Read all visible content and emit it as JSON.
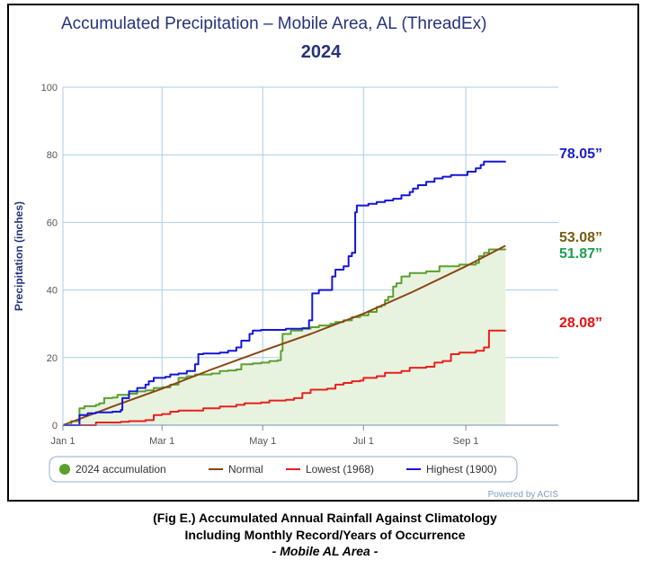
{
  "chart_data": {
    "type": "line",
    "title": "Accumulated Precipitation – Mobile Area, AL (ThreadEx)",
    "subtitle": "2024",
    "ylabel": "Precipitation (inches)",
    "xlabel": "",
    "ylim": [
      0,
      100
    ],
    "xlim": [
      0,
      300
    ],
    "y_ticks": [
      0,
      20,
      40,
      60,
      80,
      100
    ],
    "y_tick_labels": [
      "0",
      "20",
      "40",
      "60",
      "80",
      "100"
    ],
    "x_ticks": [
      0,
      60,
      121,
      182,
      244
    ],
    "x_tick_labels": [
      "Jan 1",
      "Mar 1",
      "May 1",
      "Jul 1",
      "Sep 1"
    ],
    "grid": true,
    "legend_position": "bottom",
    "credit": "Powered by ACIS",
    "series": [
      {
        "name": "2024 accumulation",
        "color": "#5aa02c",
        "fill": true,
        "points": [
          [
            0,
            0
          ],
          [
            5,
            1.2
          ],
          [
            9,
            1.5
          ],
          [
            10,
            5
          ],
          [
            13,
            5.6
          ],
          [
            20,
            6
          ],
          [
            22,
            6.5
          ],
          [
            25,
            8
          ],
          [
            30,
            8.2
          ],
          [
            33,
            9
          ],
          [
            40,
            9.3
          ],
          [
            45,
            10
          ],
          [
            50,
            10.3
          ],
          [
            55,
            11
          ],
          [
            60,
            11.2
          ],
          [
            65,
            12
          ],
          [
            70,
            14
          ],
          [
            75,
            14.5
          ],
          [
            80,
            15
          ],
          [
            90,
            15.3
          ],
          [
            95,
            16
          ],
          [
            100,
            16.2
          ],
          [
            105,
            16.5
          ],
          [
            108,
            18
          ],
          [
            115,
            18.3
          ],
          [
            120,
            18.5
          ],
          [
            125,
            19
          ],
          [
            130,
            19.2
          ],
          [
            132,
            22
          ],
          [
            133,
            27
          ],
          [
            138,
            28
          ],
          [
            145,
            28.5
          ],
          [
            150,
            29
          ],
          [
            155,
            29.5
          ],
          [
            162,
            30
          ],
          [
            165,
            30.5
          ],
          [
            170,
            31
          ],
          [
            175,
            32
          ],
          [
            180,
            32.5
          ],
          [
            185,
            33.5
          ],
          [
            190,
            35
          ],
          [
            193,
            35.5
          ],
          [
            195,
            37
          ],
          [
            197,
            38
          ],
          [
            200,
            41
          ],
          [
            202,
            42
          ],
          [
            205,
            44
          ],
          [
            210,
            45
          ],
          [
            215,
            45
          ],
          [
            220,
            45.5
          ],
          [
            225,
            45.5
          ],
          [
            228,
            47
          ],
          [
            235,
            47
          ],
          [
            240,
            47.5
          ],
          [
            245,
            47.5
          ],
          [
            250,
            48
          ],
          [
            252,
            50
          ],
          [
            255,
            51
          ],
          [
            258,
            52
          ],
          [
            262,
            52
          ],
          [
            268,
            51.87
          ]
        ]
      },
      {
        "name": "Normal",
        "color": "#8b4513",
        "fill": false,
        "points": [
          [
            0,
            0
          ],
          [
            30,
            5.5
          ],
          [
            60,
            10.8
          ],
          [
            90,
            16.5
          ],
          [
            121,
            22
          ],
          [
            150,
            27
          ],
          [
            182,
            33
          ],
          [
            212,
            39.5
          ],
          [
            244,
            47
          ],
          [
            268,
            53.08
          ]
        ]
      },
      {
        "name": "Lowest (1968)",
        "color": "#e8201c",
        "fill": false,
        "points": [
          [
            0,
            0
          ],
          [
            20,
            0.8
          ],
          [
            35,
            1
          ],
          [
            40,
            1.2
          ],
          [
            50,
            1.5
          ],
          [
            55,
            3
          ],
          [
            60,
            3.3
          ],
          [
            65,
            4
          ],
          [
            70,
            4.3
          ],
          [
            85,
            5
          ],
          [
            95,
            5.5
          ],
          [
            105,
            6
          ],
          [
            110,
            6.5
          ],
          [
            120,
            6.7
          ],
          [
            125,
            7.3
          ],
          [
            135,
            7.5
          ],
          [
            140,
            8
          ],
          [
            145,
            9.5
          ],
          [
            150,
            10.5
          ],
          [
            160,
            10.8
          ],
          [
            165,
            12
          ],
          [
            170,
            12.5
          ],
          [
            175,
            13
          ],
          [
            180,
            13.2
          ],
          [
            182,
            14
          ],
          [
            190,
            14.5
          ],
          [
            195,
            15.5
          ],
          [
            205,
            16
          ],
          [
            210,
            17
          ],
          [
            220,
            17.3
          ],
          [
            225,
            18.5
          ],
          [
            230,
            19
          ],
          [
            235,
            21
          ],
          [
            240,
            21.5
          ],
          [
            250,
            22
          ],
          [
            255,
            23
          ],
          [
            258,
            28
          ],
          [
            262,
            28
          ],
          [
            268,
            28.08
          ]
        ]
      },
      {
        "name": "Highest (1900)",
        "color": "#1515d8",
        "fill": false,
        "points": [
          [
            0,
            0
          ],
          [
            10,
            3
          ],
          [
            15,
            3.5
          ],
          [
            20,
            3.8
          ],
          [
            30,
            4
          ],
          [
            35,
            4.5
          ],
          [
            36,
            8
          ],
          [
            40,
            10
          ],
          [
            45,
            11
          ],
          [
            50,
            12
          ],
          [
            52,
            13
          ],
          [
            55,
            14
          ],
          [
            62,
            14.3
          ],
          [
            65,
            15
          ],
          [
            70,
            15.3
          ],
          [
            75,
            16
          ],
          [
            80,
            18
          ],
          [
            82,
            21
          ],
          [
            85,
            21.2
          ],
          [
            95,
            21.5
          ],
          [
            100,
            22
          ],
          [
            105,
            23
          ],
          [
            108,
            25
          ],
          [
            113,
            27
          ],
          [
            115,
            28
          ],
          [
            120,
            28.2
          ],
          [
            135,
            28.5
          ],
          [
            145,
            28.7
          ],
          [
            149,
            31
          ],
          [
            151,
            39
          ],
          [
            155,
            40
          ],
          [
            160,
            40
          ],
          [
            163,
            44
          ],
          [
            165,
            46
          ],
          [
            170,
            47
          ],
          [
            173,
            50
          ],
          [
            175,
            51
          ],
          [
            177,
            63
          ],
          [
            178,
            65
          ],
          [
            185,
            65.5
          ],
          [
            190,
            66
          ],
          [
            195,
            66.5
          ],
          [
            200,
            67
          ],
          [
            205,
            68
          ],
          [
            210,
            69
          ],
          [
            212,
            70
          ],
          [
            215,
            71
          ],
          [
            220,
            72
          ],
          [
            225,
            73
          ],
          [
            230,
            73.5
          ],
          [
            235,
            74
          ],
          [
            245,
            75
          ],
          [
            250,
            76
          ],
          [
            253,
            77
          ],
          [
            255,
            78
          ],
          [
            268,
            78.05
          ]
        ]
      }
    ],
    "annotations": [
      {
        "text": "78.05”",
        "y": 78.05,
        "color": "#1a1ad0"
      },
      {
        "text": "53.08”",
        "y": 53.08,
        "color": "#7a5c10"
      },
      {
        "text": "51.87”",
        "y": 51.87,
        "color": "#1aa050"
      },
      {
        "text": "28.08”",
        "y": 28.08,
        "color": "#e81010"
      }
    ]
  },
  "caption": {
    "line1": "(Fig E.) Accumulated Annual Rainfall Against  Climatology",
    "line2": "Including Monthly Record/Years of Occurrence",
    "line3": "- Mobile AL Area -"
  }
}
